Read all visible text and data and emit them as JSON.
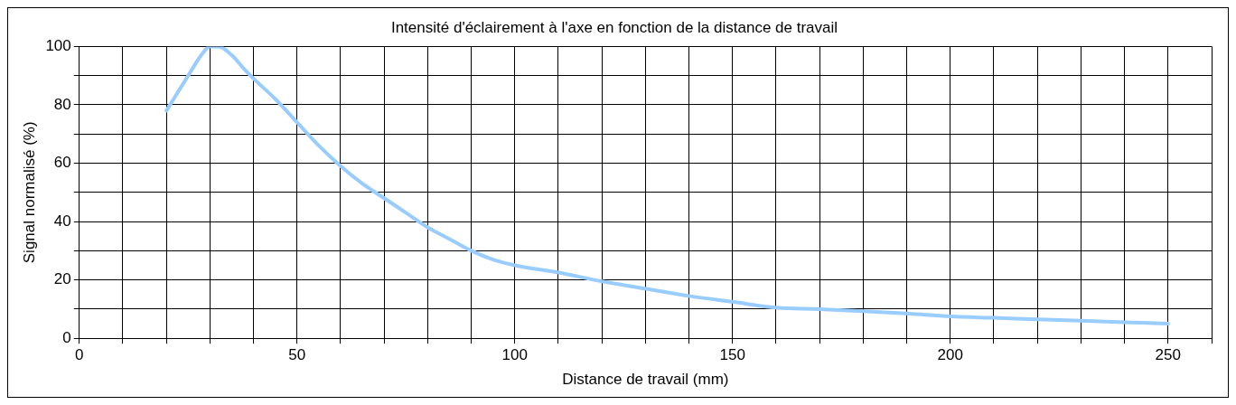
{
  "chart_data": {
    "type": "line",
    "title": "Intensité d'éclairement à l'axe en fonction de la distance de travail",
    "xlabel": "Distance de travail (mm)",
    "ylabel": "Signal normalisé (%)",
    "x": [
      20,
      25,
      28,
      30,
      32,
      35,
      38,
      40,
      45,
      50,
      55,
      60,
      65,
      70,
      75,
      80,
      85,
      90,
      95,
      100,
      110,
      120,
      130,
      140,
      150,
      160,
      170,
      180,
      190,
      200,
      210,
      220,
      230,
      240,
      250
    ],
    "series": [
      {
        "color": "#99ccff",
        "values": [
          78,
          90,
          97,
          100,
          100,
          97,
          92,
          89,
          82,
          74,
          66,
          59,
          53,
          48,
          43,
          38,
          34,
          30,
          27,
          25,
          22.5,
          19.5,
          17,
          14.5,
          12.5,
          10.5,
          10,
          9.3,
          8.5,
          7.5,
          7,
          6.5,
          6,
          5.5,
          5
        ]
      }
    ],
    "xlim": [
      0,
      260
    ],
    "xticks": [
      0,
      {
        "value": 10,
        "label": null
      },
      {
        "value": 20,
        "label": null
      },
      {
        "value": 30,
        "label": null
      },
      {
        "value": 40,
        "label": null
      },
      50,
      {
        "value": 60,
        "label": null
      },
      {
        "value": 70,
        "label": null
      },
      {
        "value": 80,
        "label": null
      },
      {
        "value": 90,
        "label": null
      },
      100,
      {
        "value": 110,
        "label": null
      },
      {
        "value": 120,
        "label": null
      },
      {
        "value": 130,
        "label": null
      },
      {
        "value": 140,
        "label": null
      },
      150,
      {
        "value": 160,
        "label": null
      },
      {
        "value": 170,
        "label": null
      },
      {
        "value": 180,
        "label": null
      },
      {
        "value": 190,
        "label": null
      },
      200,
      {
        "value": 210,
        "label": null
      },
      {
        "value": 220,
        "label": null
      },
      {
        "value": 230,
        "label": null
      },
      {
        "value": 240,
        "label": null
      },
      250,
      {
        "value": 260,
        "label": null
      }
    ],
    "ylim": [
      0,
      100
    ],
    "yticks": [
      0,
      {
        "value": 10,
        "label": null
      },
      20,
      {
        "value": 30,
        "label": null
      },
      40,
      {
        "value": 50,
        "label": null
      },
      60,
      {
        "value": 70,
        "label": null
      },
      80,
      {
        "value": 90,
        "label": null
      },
      100
    ],
    "grid": true,
    "legend": false,
    "marker": "none",
    "line_style": "solid"
  }
}
